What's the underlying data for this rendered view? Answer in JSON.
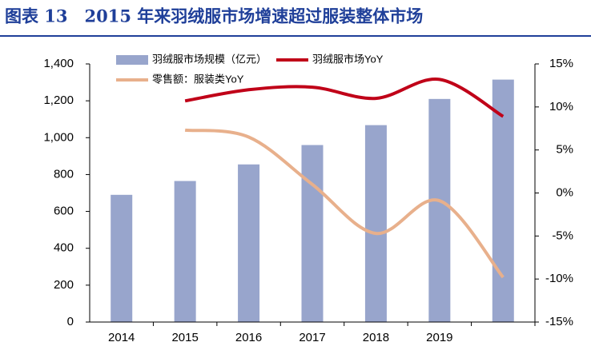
{
  "chart_data": {
    "type": "bar-line",
    "title": "图表 13　2015 年来羽绒服市场增速超过服装整体市场",
    "categories": [
      "2014",
      "2015",
      "2016",
      "2017",
      "2018",
      "2019",
      null
    ],
    "series": [
      {
        "name": "羽绒服市场规模（亿元）",
        "type": "bar",
        "color": "#98a5cc",
        "values": [
          690,
          765,
          855,
          960,
          1068,
          1210,
          1315
        ]
      },
      {
        "name": "羽绒服市场YoY",
        "type": "line",
        "axis": "y2",
        "color": "#c00018",
        "values": [
          null,
          10.7,
          12.0,
          12.3,
          11.0,
          13.2,
          8.9
        ]
      },
      {
        "name": "零售额：服装类YoY",
        "type": "line",
        "axis": "y2",
        "color": "#e8b08c",
        "values": [
          null,
          7.3,
          6.5,
          1.0,
          -4.7,
          -0.9,
          -9.8
        ]
      }
    ],
    "ylim": [
      0,
      1400
    ],
    "yticks": [
      0,
      200,
      400,
      600,
      800,
      {
        "value": 1000,
        "label": "1,000"
      },
      {
        "value": 1200,
        "label": "1,200"
      },
      {
        "value": 1400,
        "label": "1,400"
      }
    ],
    "y2lim": [
      -15,
      15
    ],
    "y2ticks": [
      {
        "value": -15,
        "label": "-15%"
      },
      {
        "value": -10,
        "label": "-10%"
      },
      {
        "value": -5,
        "label": "-5%"
      },
      {
        "value": 0,
        "label": "0%"
      },
      {
        "value": 5,
        "label": "5%"
      },
      {
        "value": 10,
        "label": "10%"
      },
      {
        "value": 15,
        "label": "15%"
      }
    ],
    "legend": "top"
  }
}
